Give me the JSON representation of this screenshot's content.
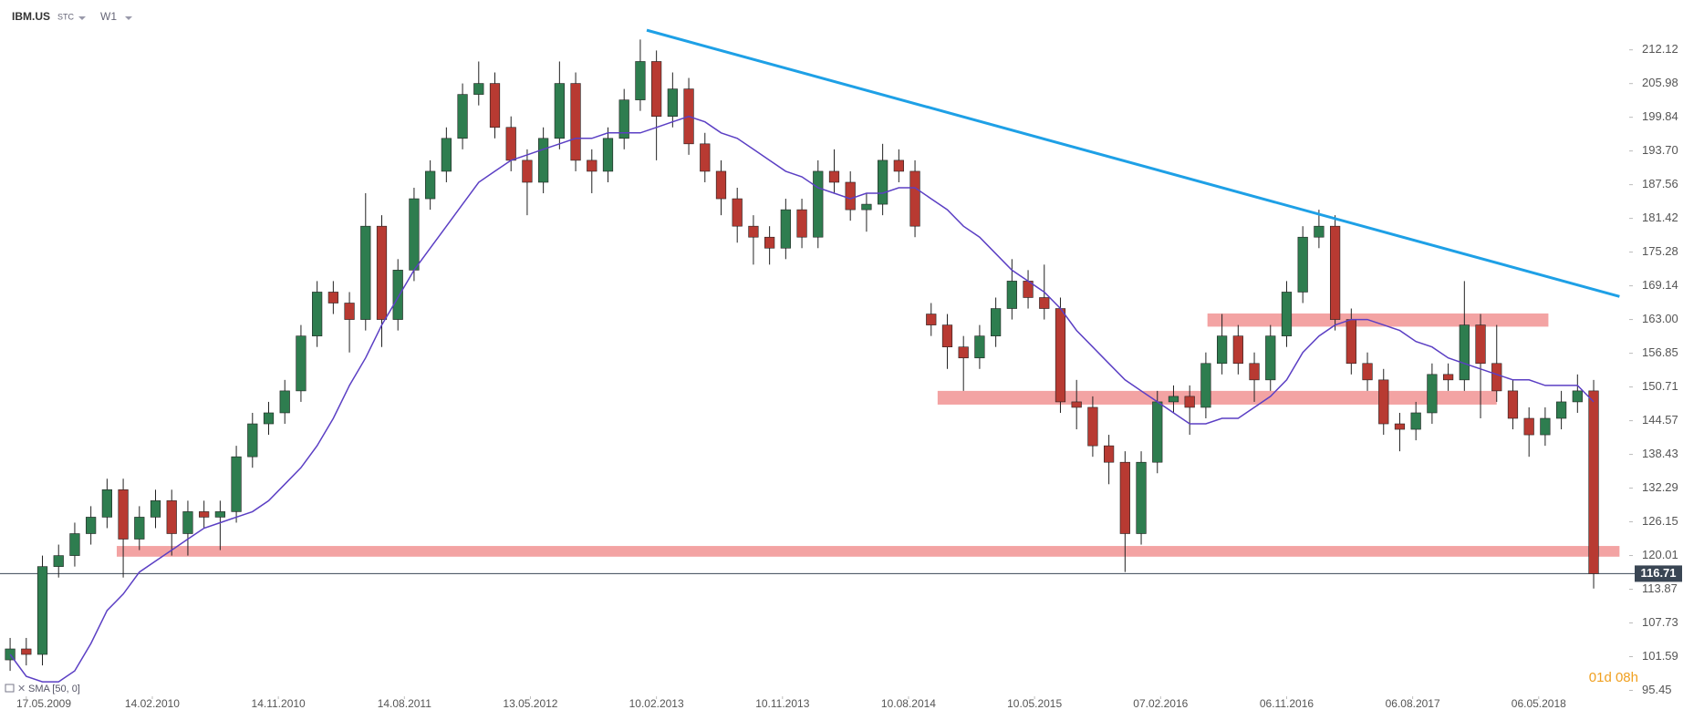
{
  "header": {
    "symbol": "IBM.US",
    "kind": "STC",
    "interval": "W1"
  },
  "countdown": "01d 08h",
  "chart_data": {
    "type": "candlestick",
    "x": [
      -5,
      0,
      5,
      10,
      15,
      20,
      25,
      30,
      35,
      40,
      45,
      50,
      55,
      60,
      65,
      70,
      75,
      80,
      85,
      90,
      95,
      100,
      105,
      110,
      115,
      120,
      125,
      130,
      135,
      140,
      145,
      150,
      155,
      160,
      165,
      170,
      175,
      180,
      185,
      190,
      195,
      200,
      205,
      210,
      215,
      220,
      225,
      230,
      235,
      240,
      245,
      250,
      255,
      260,
      265,
      270,
      275,
      280,
      285,
      290,
      295,
      300,
      305,
      310,
      315,
      320,
      325,
      330,
      335,
      340,
      345,
      350,
      355,
      360,
      365,
      370,
      375,
      380,
      385,
      390,
      395,
      400,
      405,
      410,
      415,
      420,
      425,
      430,
      435,
      440,
      445,
      450,
      455,
      460,
      465,
      470,
      475,
      480,
      485
    ],
    "open": [
      101,
      103,
      102,
      118,
      120,
      124,
      127,
      132,
      123,
      127,
      130,
      124,
      128,
      127,
      128,
      138,
      144,
      146,
      150,
      160,
      168,
      166,
      163,
      180,
      163,
      172,
      185,
      190,
      196,
      204,
      206,
      198,
      192,
      188,
      196,
      206,
      192,
      190,
      196,
      203,
      210,
      200,
      205,
      195,
      190,
      185,
      180,
      178,
      176,
      183,
      178,
      190,
      188,
      183,
      184,
      192,
      190,
      164,
      162,
      158,
      156,
      160,
      165,
      170,
      167,
      165,
      148,
      147,
      140,
      137,
      124,
      137,
      148,
      149,
      147,
      155,
      160,
      155,
      152,
      160,
      168,
      178,
      180,
      163,
      155,
      152,
      144,
      143,
      146,
      153,
      152,
      162,
      155,
      150,
      145,
      142,
      145,
      148,
      150
    ],
    "high": [
      105,
      105,
      120,
      122,
      126,
      129,
      134,
      134,
      129,
      132,
      132,
      130,
      130,
      130,
      140,
      146,
      148,
      152,
      162,
      170,
      170,
      168,
      186,
      182,
      174,
      187,
      192,
      198,
      206,
      210,
      208,
      200,
      194,
      198,
      210,
      208,
      194,
      198,
      205,
      214,
      212,
      208,
      207,
      197,
      192,
      187,
      182,
      180,
      185,
      185,
      192,
      194,
      190,
      186,
      195,
      194,
      192,
      166,
      164,
      160,
      162,
      167,
      174,
      172,
      173,
      167,
      152,
      149,
      142,
      139,
      139,
      150,
      151,
      151,
      157,
      164,
      162,
      157,
      162,
      170,
      180,
      183,
      182,
      165,
      157,
      154,
      146,
      148,
      155,
      155,
      170,
      164,
      162,
      152,
      147,
      147,
      150,
      153,
      152
    ],
    "low": [
      99,
      100,
      100,
      116,
      118,
      122,
      125,
      116,
      121,
      125,
      120,
      120,
      125,
      121,
      126,
      136,
      142,
      144,
      148,
      158,
      164,
      157,
      161,
      158,
      161,
      170,
      183,
      188,
      194,
      202,
      196,
      190,
      182,
      186,
      194,
      190,
      186,
      188,
      194,
      201,
      192,
      198,
      193,
      188,
      182,
      177,
      173,
      173,
      174,
      176,
      176,
      186,
      181,
      179,
      182,
      188,
      178,
      160,
      154,
      150,
      154,
      158,
      163,
      165,
      163,
      146,
      143,
      138,
      133,
      117,
      122,
      135,
      146,
      142,
      145,
      153,
      153,
      148,
      150,
      158,
      166,
      176,
      161,
      153,
      150,
      142,
      139,
      141,
      144,
      150,
      150,
      145,
      148,
      143,
      138,
      140,
      143,
      146,
      114
    ],
    "close": [
      103,
      102,
      118,
      120,
      124,
      127,
      132,
      123,
      127,
      130,
      124,
      128,
      127,
      128,
      138,
      144,
      146,
      150,
      160,
      168,
      166,
      163,
      180,
      163,
      172,
      185,
      190,
      196,
      204,
      206,
      198,
      192,
      188,
      196,
      206,
      192,
      190,
      196,
      203,
      210,
      200,
      205,
      195,
      190,
      185,
      180,
      178,
      176,
      183,
      178,
      190,
      188,
      183,
      184,
      192,
      190,
      180,
      162,
      158,
      156,
      160,
      165,
      170,
      167,
      165,
      148,
      147,
      140,
      137,
      124,
      137,
      148,
      149,
      147,
      155,
      160,
      155,
      152,
      160,
      168,
      178,
      180,
      163,
      155,
      152,
      144,
      143,
      146,
      153,
      152,
      162,
      155,
      150,
      145,
      142,
      145,
      148,
      150,
      116.71
    ],
    "up_color": "#2e7d4f",
    "down_color": "#b83a32",
    "wick_color": "#222222",
    "xlim": [
      -7,
      496
    ],
    "xticks": [
      {
        "value": 0,
        "label": "17.05.2009"
      },
      {
        "value": 39,
        "label": "14.02.2010"
      },
      {
        "value": 78,
        "label": "14.11.2010"
      },
      {
        "value": 117,
        "label": "14.08.2011"
      },
      {
        "value": 156,
        "label": "13.05.2012"
      },
      {
        "value": 195,
        "label": "10.02.2013"
      },
      {
        "value": 234,
        "label": "10.11.2013"
      },
      {
        "value": 273,
        "label": "10.08.2014"
      },
      {
        "value": 312,
        "label": "10.05.2015"
      },
      {
        "value": 351,
        "label": "07.02.2016"
      },
      {
        "value": 390,
        "label": "06.11.2016"
      },
      {
        "value": 429,
        "label": "06.08.2017"
      },
      {
        "value": 468,
        "label": "06.05.2018"
      }
    ],
    "ylim": [
      94.7,
      221.2
    ],
    "yticks": [
      212.12,
      205.98,
      199.84,
      {
        "value": 193.7,
        "label": "193.70"
      },
      187.56,
      181.42,
      175.28,
      169.14,
      {
        "value": 163,
        "label": "163.00"
      },
      156.85,
      150.71,
      144.57,
      138.43,
      132.29,
      126.15,
      120.01,
      113.87,
      107.73,
      101.59,
      95.45
    ],
    "sma": {
      "name": "SMA [50, 0]",
      "color": "#5b3fc4",
      "values": [
        102,
        98,
        97,
        97,
        99,
        104,
        110,
        113,
        117,
        119,
        121,
        123,
        125,
        126,
        127,
        128,
        130,
        133,
        136,
        140,
        145,
        151,
        156,
        162,
        167,
        172,
        176,
        180,
        184,
        188,
        190,
        192,
        193,
        194,
        195,
        196,
        196,
        197,
        197,
        197,
        198,
        199,
        200,
        199,
        197,
        196,
        194,
        192,
        190,
        189,
        187,
        186,
        185,
        186,
        186,
        187,
        187,
        185,
        183,
        180,
        178,
        175,
        172,
        170,
        168,
        165,
        161,
        158,
        155,
        152,
        150,
        148,
        146,
        144,
        144,
        145,
        145,
        147,
        149,
        152,
        157,
        160,
        162,
        163,
        163,
        162,
        161,
        159,
        158,
        156,
        155,
        154,
        153,
        152,
        152,
        151,
        151,
        151,
        148
      ]
    },
    "trendline": {
      "x": [
        192,
        493
      ],
      "y": [
        215.7,
        167.2
      ],
      "color": "#1ea0e6"
    },
    "zones": [
      {
        "from": 28,
        "to": 493,
        "low": 119.8,
        "high": 121.75
      },
      {
        "from": 282,
        "to": 455,
        "low": 147.5,
        "high": 150
      },
      {
        "from": 365.5,
        "to": 471,
        "low": 161.7,
        "high": 164.1
      }
    ],
    "zone_color": "#f08c8c",
    "last_price": 116.71,
    "last_price_color": "#3a4654"
  }
}
